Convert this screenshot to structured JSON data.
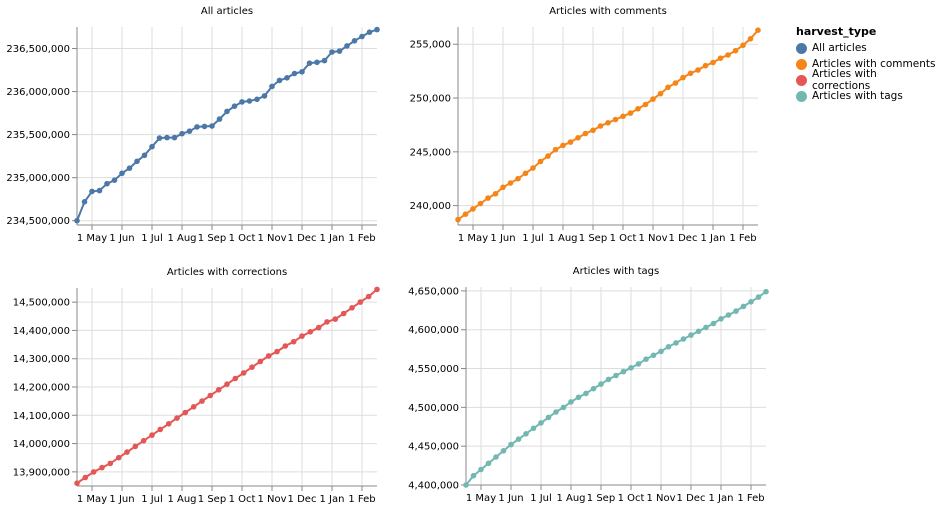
{
  "legend": {
    "title": "harvest_type",
    "items": [
      {
        "label": "All articles",
        "color": "#4c78a8"
      },
      {
        "label": "Articles with comments",
        "color": "#f58518"
      },
      {
        "label": "Articles with corrections",
        "color": "#e45756"
      },
      {
        "label": "Articles with tags",
        "color": "#72b7b2"
      }
    ]
  },
  "chart_data": [
    {
      "type": "line",
      "title": "All articles",
      "color": "#4c78a8",
      "x_ticks": [
        "1 May",
        "1 Jun",
        "1 Jul",
        "1 Aug",
        "1 Sep",
        "1 Oct",
        "1 Nov",
        "1 Dec",
        "1 Jan",
        "1 Feb"
      ],
      "y_ticks": [
        "234,500,000",
        "235,000,000",
        "235,500,000",
        "236,000,000",
        "236,500,000"
      ],
      "ylim": [
        234450000,
        236750000
      ],
      "values": [
        234500000,
        234720000,
        234840000,
        234850000,
        234930000,
        234970000,
        235050000,
        235110000,
        235190000,
        235260000,
        235360000,
        235460000,
        235465000,
        235465000,
        235510000,
        235540000,
        235590000,
        235595000,
        235600000,
        235680000,
        235770000,
        235830000,
        235880000,
        235890000,
        235910000,
        235950000,
        236060000,
        236130000,
        236160000,
        236210000,
        236230000,
        236330000,
        236340000,
        236360000,
        236460000,
        236470000,
        236530000,
        236590000,
        236640000,
        236690000,
        236720000
      ]
    },
    {
      "type": "line",
      "title": "Articles with comments",
      "color": "#f58518",
      "x_ticks": [
        "1 May",
        "1 Jun",
        "1 Jul",
        "1 Aug",
        "1 Sep",
        "1 Oct",
        "1 Nov",
        "1 Dec",
        "1 Jan",
        "1 Feb"
      ],
      "y_ticks": [
        "240,000",
        "245,000",
        "250,000",
        "255,000"
      ],
      "ylim": [
        238200,
        256600
      ],
      "values": [
        238700,
        239200,
        239700,
        240200,
        240700,
        241100,
        241700,
        242100,
        242500,
        243000,
        243500,
        244100,
        244600,
        245200,
        245600,
        245900,
        246300,
        246700,
        247000,
        247400,
        247700,
        248000,
        248300,
        248600,
        249000,
        249400,
        249900,
        250400,
        251000,
        251400,
        251900,
        252300,
        252600,
        253000,
        253300,
        253700,
        254000,
        254400,
        254900,
        255500,
        256300
      ]
    },
    {
      "type": "line",
      "title": "Articles with corrections",
      "color": "#e45756",
      "x_ticks": [
        "1 May",
        "1 Jun",
        "1 Jul",
        "1 Aug",
        "1 Sep",
        "1 Oct",
        "1 Nov",
        "1 Dec",
        "1 Jan",
        "1 Feb"
      ],
      "y_ticks": [
        "13,900,000",
        "14,000,000",
        "14,100,000",
        "14,200,000",
        "14,300,000",
        "14,400,000",
        "14,500,000"
      ],
      "ylim": [
        13850000,
        14550000
      ],
      "values": [
        13860000,
        13880000,
        13900000,
        13915000,
        13930000,
        13950000,
        13970000,
        13990000,
        14010000,
        14030000,
        14050000,
        14070000,
        14090000,
        14110000,
        14130000,
        14150000,
        14170000,
        14190000,
        14210000,
        14230000,
        14250000,
        14270000,
        14290000,
        14310000,
        14325000,
        14345000,
        14360000,
        14380000,
        14395000,
        14410000,
        14430000,
        14440000,
        14460000,
        14480000,
        14500000,
        14520000,
        14545000
      ]
    },
    {
      "type": "line",
      "title": "Articles with tags",
      "color": "#72b7b2",
      "x_ticks": [
        "1 May",
        "1 Jun",
        "1 Jul",
        "1 Aug",
        "1 Sep",
        "1 Oct",
        "1 Nov",
        "1 Dec",
        "1 Jan",
        "1 Feb"
      ],
      "y_ticks": [
        "4,400,000",
        "4,450,000",
        "4,500,000",
        "4,550,000",
        "4,600,000",
        "4,650,000"
      ],
      "ylim": [
        4400000,
        4655000
      ],
      "values": [
        4400000,
        4412000,
        4420000,
        4428000,
        4436000,
        4444000,
        4452000,
        4459000,
        4466000,
        4473000,
        4480000,
        4487000,
        4494000,
        4500000,
        4507000,
        4513000,
        4518000,
        4524000,
        4530000,
        4536000,
        4541000,
        4546000,
        4551000,
        4556000,
        4562000,
        4567000,
        4572000,
        4578000,
        4583000,
        4588000,
        4593000,
        4598000,
        4603000,
        4608000,
        4614000,
        4619000,
        4624000,
        4630000,
        4636000,
        4642000,
        4649000
      ]
    }
  ]
}
